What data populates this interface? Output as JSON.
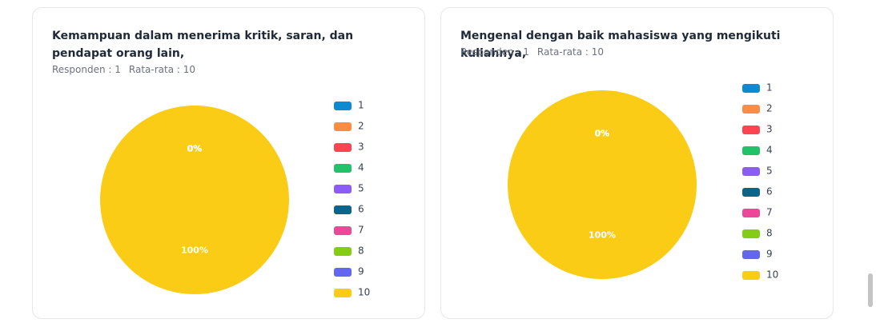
{
  "chart_data": [
    {
      "type": "pie",
      "title": "Kemampuan dalam menerima kritik, saran, dan pendapat orang lain,",
      "respondents": "Responden : 1",
      "average": "Rata-rata : 10",
      "categories": [
        "1",
        "2",
        "3",
        "4",
        "5",
        "6",
        "7",
        "8",
        "9",
        "10"
      ],
      "values": [
        0,
        0,
        0,
        0,
        0,
        0,
        0,
        0,
        0,
        100
      ],
      "value_labels": [
        "0%",
        "0%",
        "0%",
        "0%",
        "0%",
        "0%",
        "0%",
        "0%",
        "0%",
        "100%"
      ],
      "colors": [
        "#0c8bd0",
        "#fb8c45",
        "#fc4452",
        "#24c16b",
        "#8b5cf6",
        "#0b6489",
        "#ec4899",
        "#84cc16",
        "#6366f1",
        "#facc15"
      ]
    },
    {
      "type": "pie",
      "title": "Mengenal dengan baik mahasiswa yang mengikuti kuliahnya,",
      "respondents": "Responden : 1",
      "average": "Rata-rata : 10",
      "categories": [
        "1",
        "2",
        "3",
        "4",
        "5",
        "6",
        "7",
        "8",
        "9",
        "10"
      ],
      "values": [
        0,
        0,
        0,
        0,
        0,
        0,
        0,
        0,
        0,
        100
      ],
      "value_labels": [
        "0%",
        "0%",
        "0%",
        "0%",
        "0%",
        "0%",
        "0%",
        "0%",
        "0%",
        "100%"
      ],
      "colors": [
        "#0c8bd0",
        "#fb8c45",
        "#fc4452",
        "#24c16b",
        "#8b5cf6",
        "#0b6489",
        "#ec4899",
        "#84cc16",
        "#6366f1",
        "#facc15"
      ]
    }
  ]
}
